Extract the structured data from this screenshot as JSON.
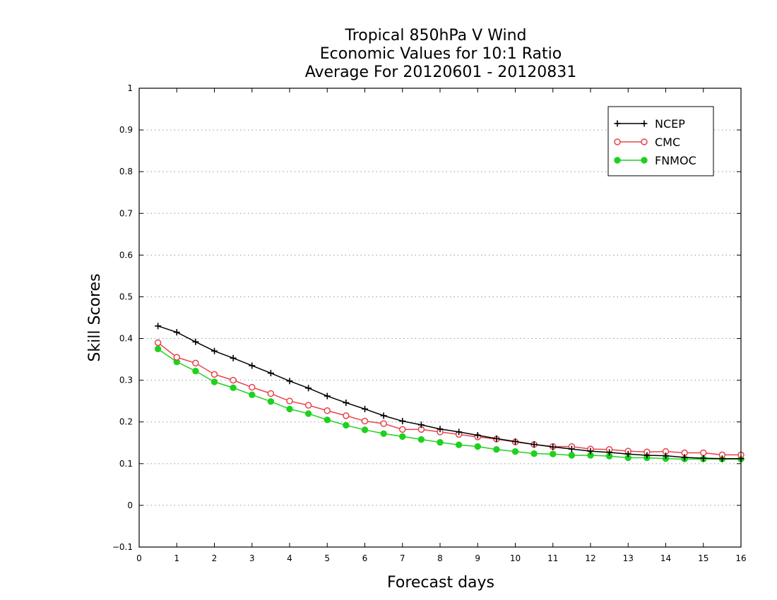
{
  "chart_data": {
    "type": "line",
    "title_lines": [
      "Tropical 850hPa V Wind",
      "Economic Values for 10:1 Ratio",
      "Average For 20120601 - 20120831"
    ],
    "xlabel": "Forecast days",
    "ylabel": "Skill Scores",
    "xlim": [
      0,
      16
    ],
    "ylim": [
      -0.1,
      1
    ],
    "xticks": [
      0,
      1,
      2,
      3,
      4,
      5,
      6,
      7,
      8,
      9,
      10,
      11,
      12,
      13,
      14,
      15,
      16
    ],
    "xtick_labels": [
      "0",
      "1",
      "2",
      "3",
      "4",
      "5",
      "6",
      "7",
      "8",
      "9",
      "10",
      "11",
      "12",
      "13",
      "14",
      "15",
      "16"
    ],
    "yticks": [
      -0.1,
      0,
      0.1,
      0.2,
      0.3,
      0.4,
      0.5,
      0.6,
      0.7,
      0.8,
      0.9,
      1
    ],
    "ytick_labels": [
      "−0.1",
      "0",
      "0.1",
      "0.2",
      "0.3",
      "0.4",
      "0.5",
      "0.6",
      "0.7",
      "0.8",
      "0.9",
      "1"
    ],
    "grid": "horizontal dotted",
    "legend_position": "top-right",
    "x": [
      0.5,
      1,
      1.5,
      2,
      2.5,
      3,
      3.5,
      4,
      4.5,
      5,
      5.5,
      6,
      6.5,
      7,
      7.5,
      8,
      8.5,
      9,
      9.5,
      10,
      10.5,
      11,
      11.5,
      12,
      12.5,
      13,
      13.5,
      14,
      14.5,
      15,
      15.5,
      16
    ],
    "series": [
      {
        "name": "NCEP",
        "color": "#000000",
        "marker": "plus",
        "values": [
          0.43,
          0.415,
          0.392,
          0.37,
          0.353,
          0.335,
          0.317,
          0.298,
          0.281,
          0.262,
          0.246,
          0.231,
          0.215,
          0.202,
          0.193,
          0.183,
          0.176,
          0.168,
          0.16,
          0.153,
          0.146,
          0.14,
          0.135,
          0.13,
          0.127,
          0.123,
          0.12,
          0.119,
          0.115,
          0.113,
          0.112,
          0.112
        ]
      },
      {
        "name": "CMC",
        "color": "#e8424a",
        "marker": "open-circle",
        "values": [
          0.39,
          0.355,
          0.341,
          0.314,
          0.3,
          0.283,
          0.268,
          0.25,
          0.24,
          0.227,
          0.215,
          0.202,
          0.196,
          0.182,
          0.182,
          0.176,
          0.17,
          0.164,
          0.159,
          0.152,
          0.146,
          0.141,
          0.141,
          0.135,
          0.134,
          0.13,
          0.128,
          0.129,
          0.126,
          0.126,
          0.121,
          0.121
        ]
      },
      {
        "name": "FNMOC",
        "color": "#1fd11f",
        "marker": "filled-circle",
        "values": [
          0.375,
          0.344,
          0.322,
          0.296,
          0.282,
          0.265,
          0.249,
          0.231,
          0.22,
          0.205,
          0.192,
          0.181,
          0.172,
          0.165,
          0.158,
          0.151,
          0.145,
          0.141,
          0.134,
          0.129,
          0.124,
          0.123,
          0.12,
          0.12,
          0.118,
          0.114,
          0.114,
          0.112,
          0.111,
          0.111,
          0.111,
          0.111
        ]
      }
    ]
  }
}
